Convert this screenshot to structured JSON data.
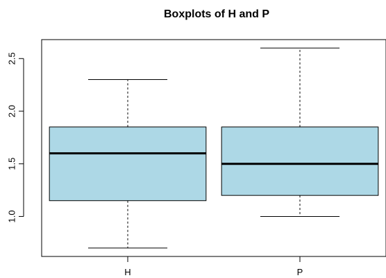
{
  "chart_data": {
    "type": "boxplot",
    "title": "Boxplots of H and P",
    "xlabel": "",
    "ylabel": "",
    "categories": [
      "H",
      "P"
    ],
    "series": [
      {
        "min": 0.7,
        "q1": 1.15,
        "median": 1.6,
        "q3": 1.85,
        "max": 2.3
      },
      {
        "min": 1.0,
        "q1": 1.2,
        "median": 1.5,
        "q3": 1.85,
        "max": 2.6
      }
    ],
    "ylim": [
      0.62,
      2.68
    ],
    "yticks": [
      1.0,
      1.5,
      2.0,
      2.5
    ],
    "ytick_labels": [
      "1.0",
      "1.5",
      "2.0",
      "2.5"
    ],
    "grid": false,
    "legend": "none",
    "box_fill": "#add8e6",
    "line_color": "#000000"
  }
}
